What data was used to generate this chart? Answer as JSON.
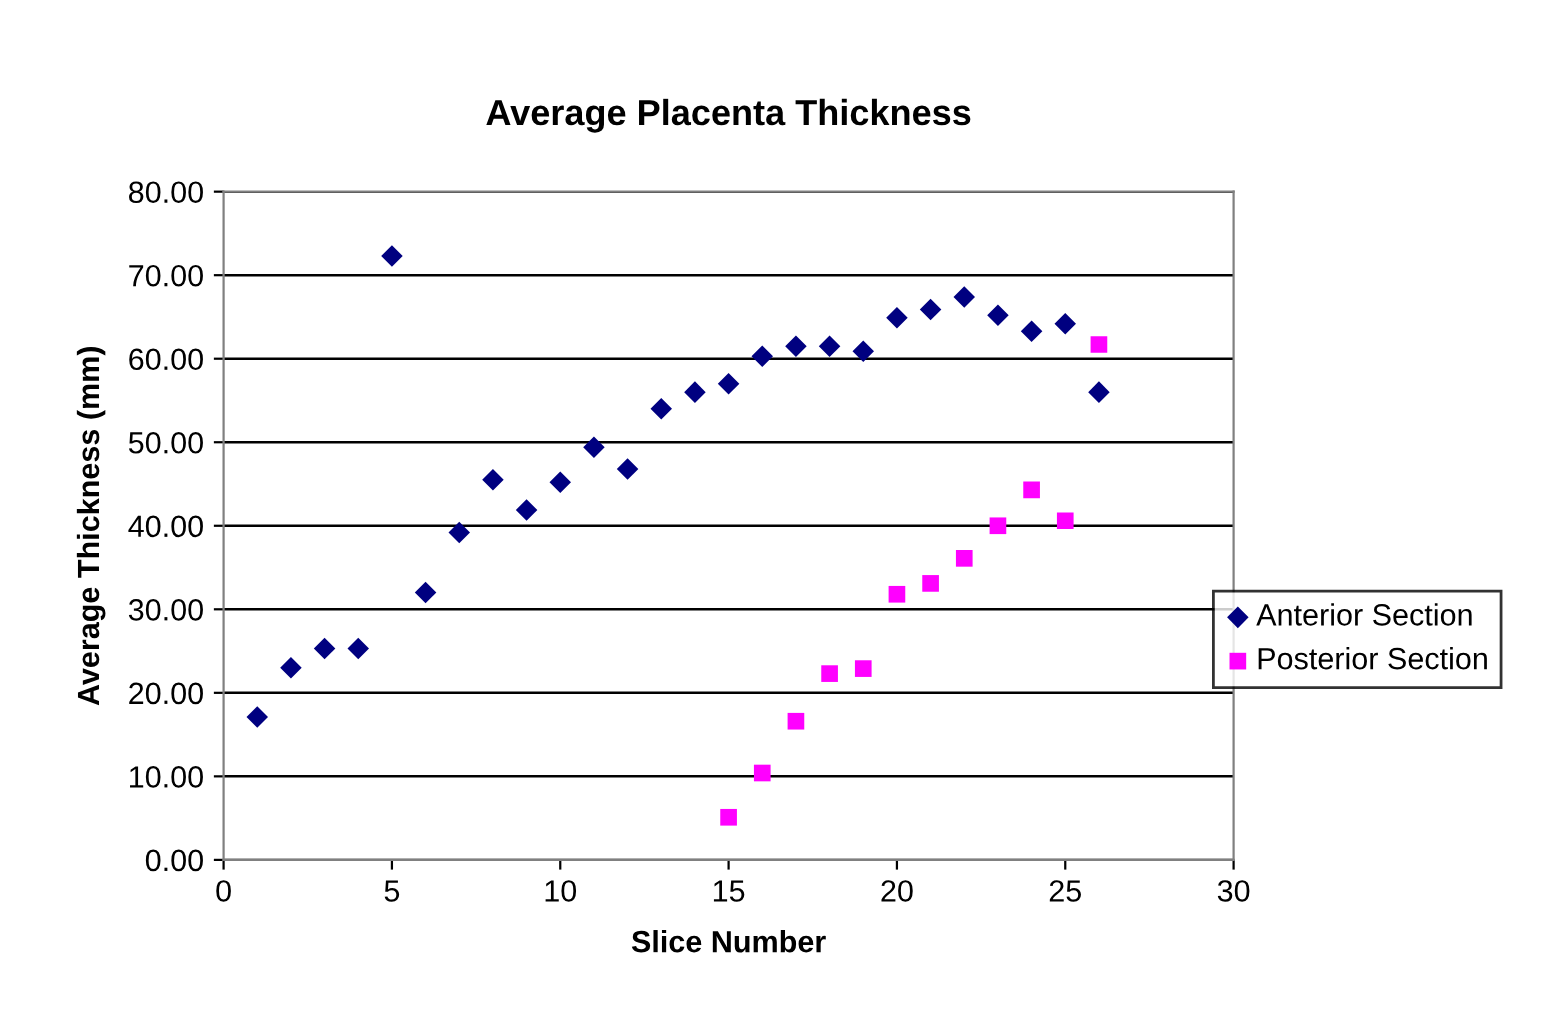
{
  "chart_data": {
    "type": "scatter",
    "title": "Average Placenta Thickness",
    "xlabel": "Slice Number",
    "ylabel": "Average Thickness (mm)",
    "xlim": [
      0,
      30
    ],
    "xticks": [
      0,
      5,
      10,
      15,
      20,
      25,
      30
    ],
    "ylim": [
      0,
      80
    ],
    "yticks": [
      {
        "value": 0,
        "label": "0.00"
      },
      {
        "value": 10,
        "label": "10.00"
      },
      {
        "value": 20,
        "label": "20.00"
      },
      {
        "value": 30,
        "label": "30.00"
      },
      {
        "value": 40,
        "label": "40.00"
      },
      {
        "value": 50,
        "label": "50.00"
      },
      {
        "value": 60,
        "label": "60.00"
      },
      {
        "value": 70,
        "label": "70.00"
      },
      {
        "value": 80,
        "label": "80.00"
      }
    ],
    "grid": "y",
    "legend": "right",
    "series": [
      {
        "name": "Anterior Section",
        "color": "#000080",
        "marker": "diamond",
        "x": [
          1,
          2,
          3,
          4,
          5,
          6,
          7,
          8,
          9,
          10,
          11,
          12,
          13,
          14,
          15,
          16,
          17,
          18,
          19,
          20,
          21,
          22,
          23,
          24,
          25,
          26
        ],
        "values": [
          17.1,
          23.0,
          25.3,
          25.3,
          72.3,
          32.0,
          39.2,
          45.5,
          41.9,
          45.2,
          49.4,
          46.8,
          54.0,
          56.0,
          57.0,
          60.3,
          61.5,
          61.5,
          60.9,
          64.9,
          65.9,
          67.4,
          65.2,
          63.3,
          64.2,
          56.0
        ]
      },
      {
        "name": "Posterior Section",
        "color": "#ff00ff",
        "marker": "square",
        "x": [
          15,
          16,
          17,
          18,
          19,
          20,
          21,
          22,
          23,
          24,
          25,
          26
        ],
        "values": [
          5.1,
          10.4,
          16.6,
          22.3,
          22.9,
          31.8,
          33.1,
          36.1,
          40.0,
          44.3,
          40.6,
          61.7
        ]
      }
    ]
  }
}
